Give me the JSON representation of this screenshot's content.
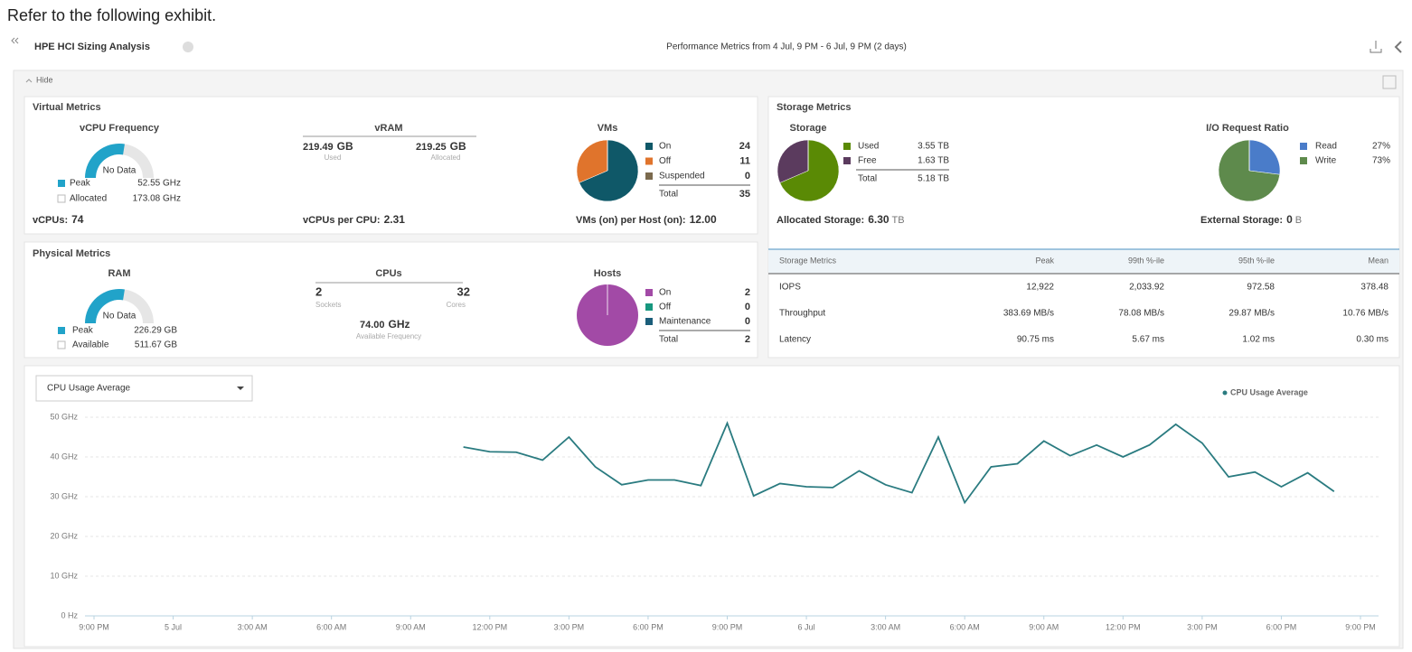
{
  "caption": "Refer to the following exhibit.",
  "header": {
    "title": "HPE HCI Sizing Analysis",
    "period": "Performance Metrics from 4 Jul, 9 PM - 6 Jul, 9 PM (2 days)",
    "hide": "Hide"
  },
  "virtual": {
    "title": "Virtual Metrics",
    "vcpu": {
      "title": "vCPU Frequency",
      "no_data": "No Data",
      "peak_label": "Peak",
      "peak": "52.55 GHz",
      "allocated_label": "Allocated",
      "allocated": "173.08 GHz"
    },
    "vcpus": {
      "label": "vCPUs:",
      "value": "74"
    },
    "vram": {
      "title": "vRAM",
      "used": "219.49",
      "used_unit": "GB",
      "used_label": "Used",
      "allocated": "219.25",
      "allocated_unit": "GB",
      "allocated_label": "Allocated"
    },
    "vcpus_per_cpu": {
      "label": "vCPUs per CPU:",
      "value": "2.31"
    },
    "vms": {
      "title": "VMs",
      "categories": [
        "On",
        "Off",
        "Suspended"
      ],
      "values": [
        24,
        11,
        0
      ],
      "colors": [
        "#0f5868",
        "#e0742c",
        "#7b6a4e"
      ],
      "total_label": "Total",
      "total": 35
    },
    "vms_per_host": {
      "label": "VMs (on) per Host (on):",
      "value": "12.00"
    }
  },
  "physical": {
    "title": "Physical Metrics",
    "ram": {
      "title": "RAM",
      "no_data": "No Data",
      "peak_label": "Peak",
      "peak": "226.29 GB",
      "available_label": "Available",
      "available": "511.67 GB"
    },
    "cpus": {
      "title": "CPUs",
      "sockets": "2",
      "sockets_label": "Sockets",
      "cores": "32",
      "cores_label": "Cores",
      "frequency": "74.00",
      "frequency_unit": "GHz",
      "frequency_label": "Available Frequency"
    },
    "hosts": {
      "title": "Hosts",
      "categories": [
        "On",
        "Off",
        "Maintenance"
      ],
      "values": [
        2,
        0,
        0
      ],
      "colors": [
        "#a24aa6",
        "#17977f",
        "#1b5e7a"
      ],
      "total_label": "Total",
      "total": 2
    }
  },
  "storage": {
    "title": "Storage Metrics",
    "pie": {
      "title": "Storage",
      "categories": [
        "Used",
        "Free"
      ],
      "values": [
        3.55,
        1.63
      ],
      "value_labels": [
        "3.55 TB",
        "1.63 TB"
      ],
      "colors": [
        "#5a8a05",
        "#5b3b5e"
      ],
      "total_label": "Total",
      "total": "5.18 TB"
    },
    "allocated": {
      "label": "Allocated Storage:",
      "value": "6.30",
      "unit": "TB"
    },
    "io": {
      "title": "I/O Request Ratio",
      "categories": [
        "Read",
        "Write"
      ],
      "values": [
        27,
        73
      ],
      "value_labels": [
        "27%",
        "73%"
      ],
      "colors": [
        "#4a7cc9",
        "#5e8a4c"
      ]
    },
    "external": {
      "label": "External Storage:",
      "value": "0",
      "unit": "B"
    },
    "table": {
      "header": [
        "Storage Metrics",
        "Peak",
        "99th %-ile",
        "95th %-ile",
        "Mean"
      ],
      "rows": [
        [
          "IOPS",
          "12,922",
          "2,033.92",
          "972.58",
          "378.48"
        ],
        [
          "Throughput",
          "383.69 MB/s",
          "78.08 MB/s",
          "29.87 MB/s",
          "10.76 MB/s"
        ],
        [
          "Latency",
          "90.75 ms",
          "5.67 ms",
          "1.02 ms",
          "0.30 ms"
        ]
      ]
    }
  },
  "chart_selector": "CPU Usage Average",
  "chart_data": {
    "type": "line",
    "x": [
      14,
      15,
      16,
      17,
      18,
      19,
      20,
      21,
      22,
      23,
      24,
      25,
      26,
      27,
      28,
      29,
      30,
      31,
      32,
      33,
      34,
      35,
      36,
      37,
      38,
      39,
      40,
      41,
      42,
      43,
      44,
      45,
      46,
      47
    ],
    "series": [
      {
        "name": "CPU Usage Average",
        "color": "#2a7b80",
        "values": [
          42.5,
          41.3,
          41.2,
          39.2,
          45,
          37.5,
          33,
          34.2,
          34.2,
          32.8,
          48.5,
          30.2,
          33.3,
          32.5,
          32.3,
          36.5,
          33,
          31,
          45,
          28.5,
          37.5,
          38.3,
          44,
          40.3,
          43,
          40,
          43,
          48.2,
          43.5,
          35,
          36.2,
          32.5,
          36,
          31.3
        ]
      }
    ],
    "xlim": [
      0,
      48
    ],
    "xticks": [
      {
        "value": 0,
        "label": "9:00 PM"
      },
      {
        "value": 3,
        "label": "5 Jul"
      },
      {
        "value": 6,
        "label": "3:00 AM"
      },
      {
        "value": 9,
        "label": "6:00 AM"
      },
      {
        "value": 12,
        "label": "9:00 AM"
      },
      {
        "value": 15,
        "label": "12:00 PM"
      },
      {
        "value": 18,
        "label": "3:00 PM"
      },
      {
        "value": 21,
        "label": "6:00 PM"
      },
      {
        "value": 24,
        "label": "9:00 PM"
      },
      {
        "value": 27,
        "label": "6 Jul"
      },
      {
        "value": 30,
        "label": "3:00 AM"
      },
      {
        "value": 33,
        "label": "6:00 AM"
      },
      {
        "value": 36,
        "label": "9:00 AM"
      },
      {
        "value": 39,
        "label": "12:00 PM"
      },
      {
        "value": 42,
        "label": "3:00 PM"
      },
      {
        "value": 45,
        "label": "6:00 PM"
      },
      {
        "value": 48,
        "label": "9:00 PM"
      }
    ],
    "ylim": [
      0,
      50
    ],
    "yticks": [
      {
        "value": 0,
        "label": "0 Hz"
      },
      {
        "value": 10,
        "label": "10 GHz"
      },
      {
        "value": 20,
        "label": "20 GHz"
      },
      {
        "value": 30,
        "label": "30 GHz"
      },
      {
        "value": 40,
        "label": "40 GHz"
      },
      {
        "value": 50,
        "label": "50 GHz"
      }
    ],
    "grid": true
  }
}
